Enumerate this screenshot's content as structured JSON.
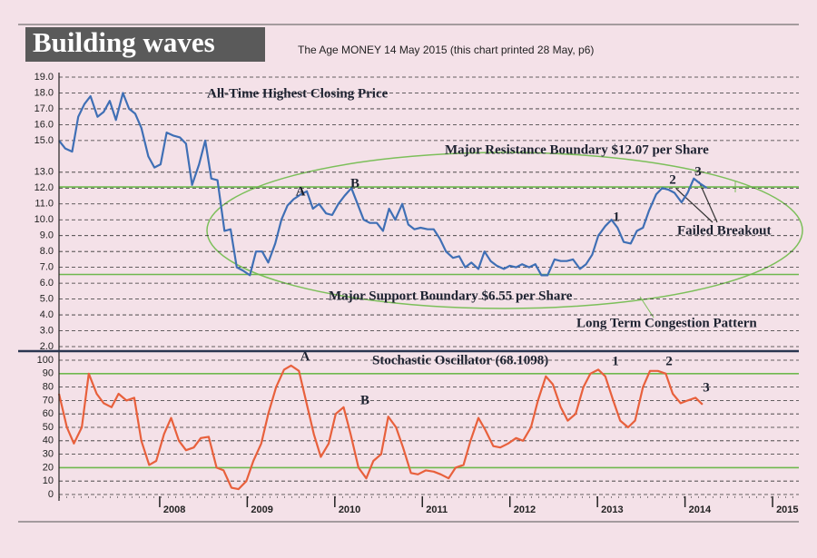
{
  "chart_data": [
    {
      "type": "line",
      "title": "Building waves",
      "subtitle": "The Age MONEY 14 May 2015 (this chart printed 28 May, p6)",
      "color": "#3f6fb5",
      "xlim": [
        2006.85,
        2015.3
      ],
      "x": [
        2006.85,
        2006.92,
        2007.0,
        2007.07,
        2007.14,
        2007.21,
        2007.29,
        2007.36,
        2007.43,
        2007.5,
        2007.58,
        2007.65,
        2007.72,
        2007.79,
        2007.87,
        2007.94,
        2008.01,
        2008.08,
        2008.16,
        2008.23,
        2008.3,
        2008.37,
        2008.45,
        2008.52,
        2008.59,
        2008.66,
        2008.74,
        2008.81,
        2008.88,
        2008.95,
        2009.03,
        2009.1,
        2009.17,
        2009.24,
        2009.32,
        2009.39,
        2009.46,
        2009.53,
        2009.61,
        2009.68,
        2009.75,
        2009.82,
        2009.9,
        2009.97,
        2010.04,
        2010.11,
        2010.19,
        2010.26,
        2010.33,
        2010.4,
        2010.48,
        2010.55,
        2010.62,
        2010.69,
        2010.77,
        2010.84,
        2010.91,
        2010.98,
        2011.06,
        2011.13,
        2011.2,
        2011.27,
        2011.35,
        2011.42,
        2011.49,
        2011.56,
        2011.64,
        2011.71,
        2011.78,
        2011.85,
        2011.93,
        2012.0,
        2012.07,
        2012.14,
        2012.22,
        2012.29,
        2012.36,
        2012.43,
        2012.51,
        2012.58,
        2012.65,
        2012.72,
        2012.8,
        2012.87,
        2012.94,
        2013.01,
        2013.09,
        2013.16,
        2013.23,
        2013.3,
        2013.38,
        2013.45,
        2013.52,
        2013.59,
        2013.67,
        2013.74,
        2013.81,
        2013.88,
        2013.96,
        2014.03,
        2014.1,
        2014.17,
        2014.25
      ],
      "values": [
        15.0,
        14.5,
        14.3,
        16.5,
        17.3,
        17.8,
        16.5,
        16.8,
        17.5,
        16.3,
        18.0,
        17.0,
        16.7,
        15.8,
        14.0,
        13.3,
        13.5,
        15.5,
        15.3,
        15.2,
        14.8,
        12.2,
        13.5,
        15.0,
        12.6,
        12.5,
        9.3,
        9.4,
        7.0,
        6.8,
        6.5,
        8.0,
        8.0,
        7.3,
        8.5,
        10.0,
        10.9,
        11.3,
        11.6,
        11.8,
        10.7,
        11.0,
        10.4,
        10.3,
        11.0,
        11.5,
        12.0,
        11.0,
        10.0,
        9.8,
        9.8,
        9.3,
        10.7,
        10.0,
        11.0,
        9.7,
        9.4,
        9.5,
        9.4,
        9.4,
        8.8,
        8.0,
        7.6,
        7.7,
        7.0,
        7.3,
        6.9,
        8.0,
        7.4,
        7.1,
        6.9,
        7.1,
        7.0,
        7.2,
        7.0,
        7.2,
        6.5,
        6.5,
        7.5,
        7.4,
        7.4,
        7.5,
        6.9,
        7.2,
        7.8,
        9.0,
        9.6,
        10.0,
        9.5,
        8.6,
        8.5,
        9.3,
        9.5,
        10.6,
        11.6,
        12.0,
        11.9,
        11.7,
        11.1,
        11.7,
        12.6,
        12.3,
        12.0
      ],
      "reference_lines": [
        12.07,
        6.55
      ],
      "ylim": [
        2,
        19
      ],
      "yticks": [
        {
          "value": 2,
          "label": "2.0"
        },
        {
          "value": 3,
          "label": "3.0"
        },
        {
          "value": 4,
          "label": "4.0"
        },
        {
          "value": 5,
          "label": "5.0"
        },
        {
          "value": 6,
          "label": "6.0"
        },
        {
          "value": 7,
          "label": "7.0"
        },
        {
          "value": 8,
          "label": "8.0"
        },
        {
          "value": 9,
          "label": "9.0"
        },
        {
          "value": 10,
          "label": "10.0"
        },
        {
          "value": 11,
          "label": "11.0"
        },
        {
          "value": 12,
          "label": "12.0"
        },
        {
          "value": 13,
          "label": "13.0"
        },
        {
          "value": 15,
          "label": "15.0"
        },
        {
          "value": 16,
          "label": "16.0"
        },
        {
          "value": 17,
          "label": "17.0"
        },
        {
          "value": 18,
          "label": "18.0"
        },
        {
          "value": 19,
          "label": "19.0"
        }
      ],
      "grid": true,
      "annotations": [
        "All-Time Highest Closing Price",
        "Major Resistance Boundary $12.07 per Share",
        "Major Support Boundary $6.55 per Share",
        "Long Term Congestion Pattern",
        "Failed Breakout",
        "A",
        "B",
        "1",
        "2",
        "3"
      ]
    },
    {
      "type": "line",
      "color": "#e8603c",
      "xlim": [
        2006.85,
        2015.3
      ],
      "xticks": [
        2008,
        2009,
        2010,
        2011,
        2012,
        2013,
        2014,
        2015
      ],
      "x": [
        2006.85,
        2006.94,
        2007.02,
        2007.11,
        2007.19,
        2007.28,
        2007.36,
        2007.45,
        2007.53,
        2007.62,
        2007.71,
        2007.79,
        2007.88,
        2007.96,
        2008.05,
        2008.13,
        2008.22,
        2008.3,
        2008.39,
        2008.47,
        2008.56,
        2008.65,
        2008.73,
        2008.82,
        2008.9,
        2008.99,
        2009.07,
        2009.16,
        2009.24,
        2009.33,
        2009.42,
        2009.5,
        2009.59,
        2009.67,
        2009.76,
        2009.84,
        2009.93,
        2010.01,
        2010.1,
        2010.18,
        2010.27,
        2010.36,
        2010.44,
        2010.53,
        2010.61,
        2010.7,
        2010.78,
        2010.87,
        2010.95,
        2011.04,
        2011.13,
        2011.21,
        2011.3,
        2011.38,
        2011.47,
        2011.55,
        2011.64,
        2011.72,
        2011.81,
        2011.89,
        2011.98,
        2012.07,
        2012.15,
        2012.24,
        2012.32,
        2012.41,
        2012.49,
        2012.58,
        2012.66,
        2012.75,
        2012.84,
        2012.92,
        2013.01,
        2013.09,
        2013.18,
        2013.26,
        2013.35,
        2013.43,
        2013.52,
        2013.6,
        2013.69,
        2013.78,
        2013.86,
        2013.95,
        2014.03,
        2014.12,
        2014.2
      ],
      "values": [
        75,
        50,
        38,
        50,
        90,
        75,
        68,
        65,
        75,
        70,
        72,
        40,
        22,
        25,
        45,
        57,
        40,
        33,
        35,
        42,
        43,
        20,
        18,
        5,
        4,
        10,
        25,
        38,
        60,
        80,
        93,
        96,
        92,
        70,
        45,
        28,
        38,
        60,
        65,
        45,
        20,
        12,
        25,
        30,
        58,
        50,
        35,
        16,
        15,
        18,
        17,
        15,
        12,
        20,
        22,
        40,
        57,
        48,
        36,
        35,
        38,
        42,
        40,
        50,
        70,
        88,
        82,
        65,
        55,
        60,
        80,
        90,
        93,
        88,
        70,
        55,
        50,
        55,
        80,
        92,
        92,
        90,
        75,
        68,
        70,
        72,
        67
      ],
      "reference_lines": [
        90,
        20
      ],
      "ylim": [
        0,
        100
      ],
      "yticks": [
        0,
        10,
        20,
        30,
        40,
        50,
        60,
        70,
        80,
        90,
        100
      ],
      "grid": true,
      "annotations": [
        "Stochastic Oscillator (68.1098)",
        "A",
        "B",
        "1",
        "2",
        "3"
      ]
    }
  ]
}
